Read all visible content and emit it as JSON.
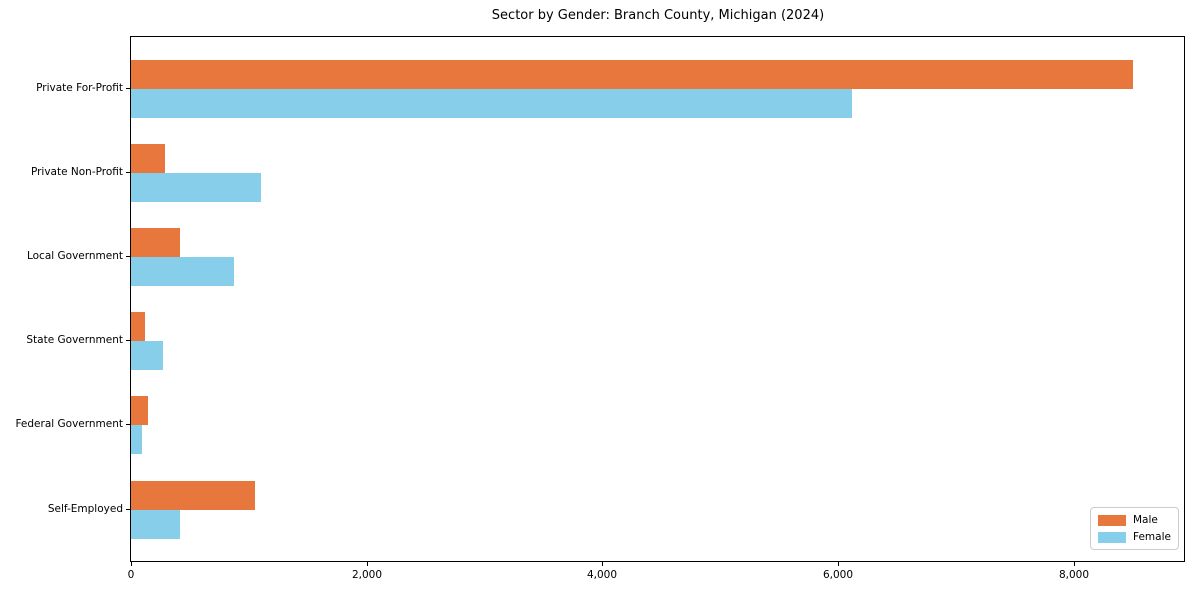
{
  "title": "Sector by Gender: Branch County, Michigan (2024)",
  "chart_data": {
    "type": "bar",
    "orientation": "horizontal",
    "title": "Sector by Gender: Branch County, Michigan (2024)",
    "categories": [
      "Private For-Profit",
      "Private Non-Profit",
      "Local Government",
      "State Government",
      "Federal Government",
      "Self-Employed"
    ],
    "series": [
      {
        "name": "Male",
        "color": "#E8773D",
        "values": [
          8500,
          285,
          420,
          120,
          145,
          1050
        ]
      },
      {
        "name": "Female",
        "color": "#87CEEB",
        "values": [
          6120,
          1100,
          870,
          275,
          90,
          420
        ]
      }
    ],
    "xlabel": "",
    "ylabel": "",
    "xlim": [
      0,
      8936
    ],
    "x_ticks": [
      {
        "value": 0,
        "label": "0"
      },
      {
        "value": 2000,
        "label": "2,000"
      },
      {
        "value": 4000,
        "label": "4,000"
      },
      {
        "value": 6000,
        "label": "6,000"
      },
      {
        "value": 8000,
        "label": "8,000"
      }
    ],
    "grid": false,
    "legend_position": "lower right"
  },
  "legend": {
    "items": [
      {
        "label": "Male",
        "color": "#E8773D"
      },
      {
        "label": "Female",
        "color": "#87CEEB"
      }
    ]
  }
}
